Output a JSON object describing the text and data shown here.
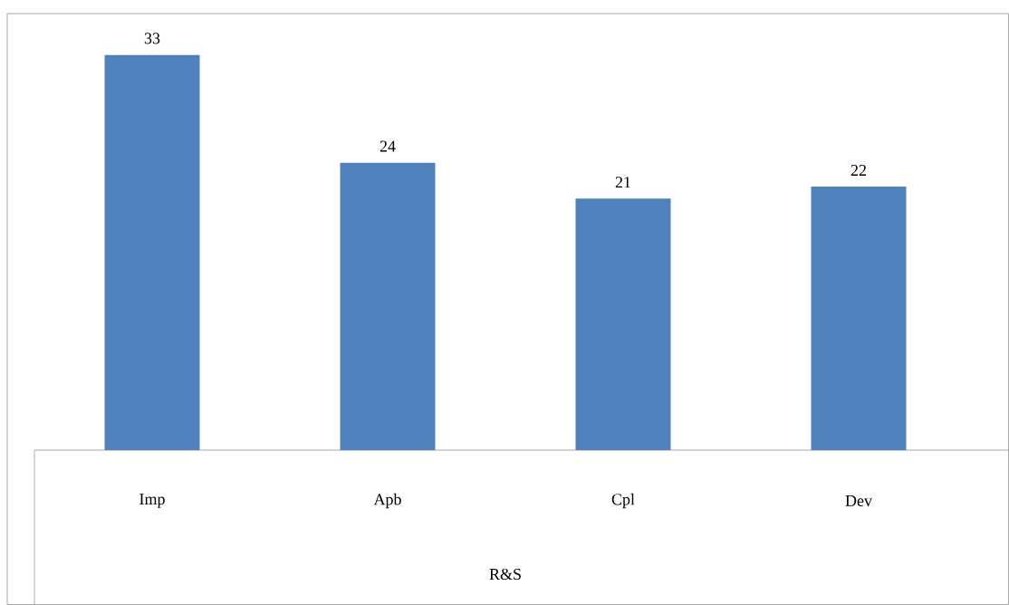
{
  "chart_data": {
    "type": "bar",
    "categories": [
      "Imp",
      "Apb",
      "Cpl",
      "Dev"
    ],
    "values": [
      33,
      24,
      21,
      22
    ],
    "color": "#4f81bd",
    "data_labels": true,
    "xlabel": "R&S"
  }
}
